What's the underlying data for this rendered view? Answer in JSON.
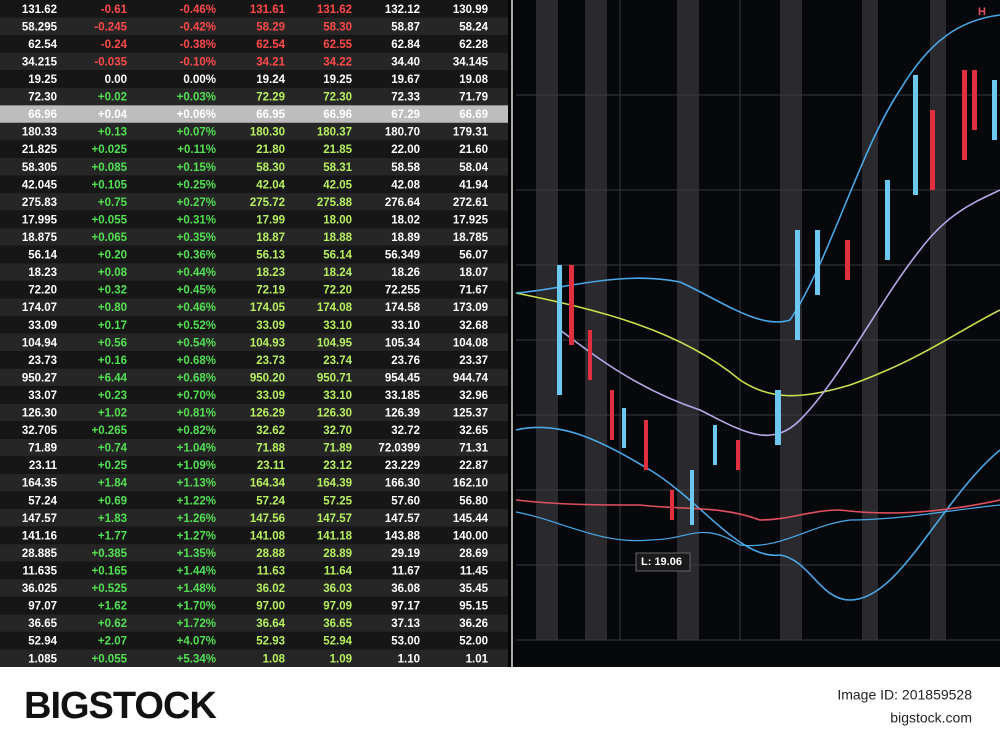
{
  "table": {
    "highlight_row": 6,
    "rows": [
      [
        "131.62",
        "-0.61",
        "-0.46%",
        "131.61",
        "131.62",
        "132.12",
        "130.99"
      ],
      [
        "58.295",
        "-0.245",
        "-0.42%",
        "58.29",
        "58.30",
        "58.87",
        "58.24"
      ],
      [
        "62.54",
        "-0.24",
        "-0.38%",
        "62.54",
        "62.55",
        "62.84",
        "62.28"
      ],
      [
        "34.215",
        "-0.035",
        "-0.10%",
        "34.21",
        "34.22",
        "34.40",
        "34.145"
      ],
      [
        "19.25",
        "0.00",
        "0.00%",
        "19.24",
        "19.25",
        "19.67",
        "19.08"
      ],
      [
        "72.30",
        "+0.02",
        "+0.03%",
        "72.29",
        "72.30",
        "72.33",
        "71.79"
      ],
      [
        "66.96",
        "+0.04",
        "+0.06%",
        "66.95",
        "66.96",
        "67.29",
        "66.69"
      ],
      [
        "180.33",
        "+0.13",
        "+0.07%",
        "180.30",
        "180.37",
        "180.70",
        "179.31"
      ],
      [
        "21.825",
        "+0.025",
        "+0.11%",
        "21.80",
        "21.85",
        "22.00",
        "21.60"
      ],
      [
        "58.305",
        "+0.085",
        "+0.15%",
        "58.30",
        "58.31",
        "58.58",
        "58.04"
      ],
      [
        "42.045",
        "+0.105",
        "+0.25%",
        "42.04",
        "42.05",
        "42.08",
        "41.94"
      ],
      [
        "275.83",
        "+0.75",
        "+0.27%",
        "275.72",
        "275.88",
        "276.64",
        "272.61"
      ],
      [
        "17.995",
        "+0.055",
        "+0.31%",
        "17.99",
        "18.00",
        "18.02",
        "17.925"
      ],
      [
        "18.875",
        "+0.065",
        "+0.35%",
        "18.87",
        "18.88",
        "18.89",
        "18.785"
      ],
      [
        "56.14",
        "+0.20",
        "+0.36%",
        "56.13",
        "56.14",
        "56.349",
        "56.07"
      ],
      [
        "18.23",
        "+0.08",
        "+0.44%",
        "18.23",
        "18.24",
        "18.26",
        "18.07"
      ],
      [
        "72.20",
        "+0.32",
        "+0.45%",
        "72.19",
        "72.20",
        "72.255",
        "71.67"
      ],
      [
        "174.07",
        "+0.80",
        "+0.46%",
        "174.05",
        "174.08",
        "174.58",
        "173.09"
      ],
      [
        "33.09",
        "+0.17",
        "+0.52%",
        "33.09",
        "33.10",
        "33.10",
        "32.68"
      ],
      [
        "104.94",
        "+0.56",
        "+0.54%",
        "104.93",
        "104.95",
        "105.34",
        "104.08"
      ],
      [
        "23.73",
        "+0.16",
        "+0.68%",
        "23.73",
        "23.74",
        "23.76",
        "23.37"
      ],
      [
        "950.27",
        "+6.44",
        "+0.68%",
        "950.20",
        "950.71",
        "954.45",
        "944.74"
      ],
      [
        "33.07",
        "+0.23",
        "+0.70%",
        "33.09",
        "33.10",
        "33.185",
        "32.96"
      ],
      [
        "126.30",
        "+1.02",
        "+0.81%",
        "126.29",
        "126.30",
        "126.39",
        "125.37"
      ],
      [
        "32.705",
        "+0.265",
        "+0.82%",
        "32.62",
        "32.70",
        "32.72",
        "32.65"
      ],
      [
        "71.89",
        "+0.74",
        "+1.04%",
        "71.88",
        "71.89",
        "72.0399",
        "71.31"
      ],
      [
        "23.11",
        "+0.25",
        "+1.09%",
        "23.11",
        "23.12",
        "23.229",
        "22.87"
      ],
      [
        "164.35",
        "+1.84",
        "+1.13%",
        "164.34",
        "164.39",
        "166.30",
        "162.10"
      ],
      [
        "57.24",
        "+0.69",
        "+1.22%",
        "57.24",
        "57.25",
        "57.60",
        "56.80"
      ],
      [
        "147.57",
        "+1.83",
        "+1.26%",
        "147.56",
        "147.57",
        "147.57",
        "145.44"
      ],
      [
        "141.16",
        "+1.77",
        "+1.27%",
        "141.08",
        "141.18",
        "143.88",
        "140.00"
      ],
      [
        "28.885",
        "+0.385",
        "+1.35%",
        "28.88",
        "28.89",
        "29.19",
        "28.69"
      ],
      [
        "11.635",
        "+0.165",
        "+1.44%",
        "11.63",
        "11.64",
        "11.67",
        "11.45"
      ],
      [
        "36.025",
        "+0.525",
        "+1.48%",
        "36.02",
        "36.03",
        "36.08",
        "35.45"
      ],
      [
        "97.07",
        "+1.62",
        "+1.70%",
        "97.00",
        "97.09",
        "97.17",
        "95.15"
      ],
      [
        "36.65",
        "+0.62",
        "+1.72%",
        "36.64",
        "36.65",
        "37.13",
        "36.26"
      ],
      [
        "52.94",
        "+2.07",
        "+4.07%",
        "52.93",
        "52.94",
        "53.00",
        "52.00"
      ],
      [
        "1.085",
        "+0.055",
        "+5.34%",
        "1.08",
        "1.09",
        "1.10",
        "1.01"
      ]
    ]
  },
  "chart": {
    "low_label": "L: 19.06",
    "high_label": "H"
  },
  "footer": {
    "brand": "BIGSTOCK",
    "image_id": "Image ID: 201859528",
    "site": "bigstock.com"
  }
}
